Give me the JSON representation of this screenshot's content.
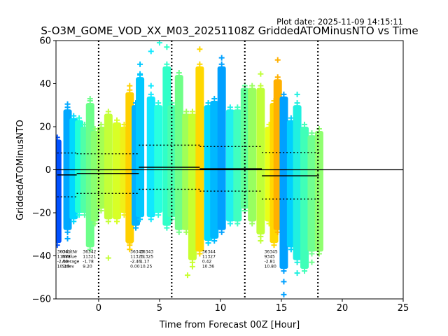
{
  "chart_data": {
    "type": "scatter",
    "title": "S-O3M_GOME_VOD_XX_M03_20251108Z GriddedATOMinusNTO vs Time",
    "plot_date": "Plot date: 2025-11-09 14:15:11",
    "xlabel": "Time from Forecast 00Z [Hour]",
    "ylabel": "GriddedATOMinusNTO",
    "xlim": [
      -3.5,
      25
    ],
    "ylim": [
      -60,
      60
    ],
    "xticks": [
      0,
      5,
      10,
      15,
      20,
      25
    ],
    "yticks": [
      -60,
      -40,
      -20,
      0,
      20,
      40,
      60
    ],
    "vlines_dotted": [
      0,
      6,
      12,
      18
    ],
    "hline_zero": 0,
    "columns": [
      {
        "x": -3.4,
        "min": -36,
        "max": 16,
        "color": "#0050ff"
      },
      {
        "x": -2.55,
        "min": -30,
        "max": 30,
        "color": "#00a8ff"
      },
      {
        "x": -2.05,
        "min": -25,
        "max": 26,
        "color": "#00d8ff"
      },
      {
        "x": -1.6,
        "min": -22,
        "max": 25,
        "color": "#20ffd8"
      },
      {
        "x": -1.15,
        "min": -22,
        "max": 22,
        "color": "#50ffa8"
      },
      {
        "x": -0.7,
        "min": -38,
        "max": 33,
        "color": "#6cff8a"
      },
      {
        "x": -0.3,
        "min": -26,
        "max": 20,
        "color": "#88ff70"
      },
      {
        "x": 0.2,
        "min": -20,
        "max": 22,
        "color": "#a4ff54"
      },
      {
        "x": 0.8,
        "min": -25,
        "max": 28,
        "color": "#c4ff38"
      },
      {
        "x": 1.5,
        "min": -25,
        "max": 24,
        "color": "#d8ff26"
      },
      {
        "x": 2.1,
        "min": -22,
        "max": 22,
        "color": "#f0f018"
      },
      {
        "x": 2.55,
        "min": -36,
        "max": 38,
        "color": "#ffd000"
      },
      {
        "x": 3.05,
        "min": -28,
        "max": 32,
        "color": "#00b0ff"
      },
      {
        "x": 3.4,
        "min": -24,
        "max": 45,
        "color": "#00c8ff"
      },
      {
        "x": 4.3,
        "min": -24,
        "max": 36,
        "color": "#10e8ff"
      },
      {
        "x": 4.9,
        "min": -22,
        "max": 32,
        "color": "#28ffe0"
      },
      {
        "x": 5.6,
        "min": -28,
        "max": 50,
        "color": "#30ffc8"
      },
      {
        "x": 6.0,
        "min": -24,
        "max": 32,
        "color": "#48ffb0"
      },
      {
        "x": 6.6,
        "min": -30,
        "max": 46,
        "color": "#70ff88"
      },
      {
        "x": 7.2,
        "min": -30,
        "max": 28,
        "color": "#a0ff58"
      },
      {
        "x": 7.7,
        "min": -44,
        "max": 28,
        "color": "#c8ff30"
      },
      {
        "x": 8.3,
        "min": -40,
        "max": 50,
        "color": "#ffd800"
      },
      {
        "x": 9.0,
        "min": -35,
        "max": 32,
        "color": "#00d8ff"
      },
      {
        "x": 9.5,
        "min": -34,
        "max": 34,
        "color": "#00b8ff"
      },
      {
        "x": 10.1,
        "min": -30,
        "max": 50,
        "color": "#00a0ff"
      },
      {
        "x": 10.8,
        "min": -26,
        "max": 30,
        "color": "#20f0f0"
      },
      {
        "x": 11.4,
        "min": -26,
        "max": 30,
        "color": "#40ffc0"
      },
      {
        "x": 12.0,
        "min": -20,
        "max": 40,
        "color": "#60ff98"
      },
      {
        "x": 12.6,
        "min": -26,
        "max": 40,
        "color": "#98ff60"
      },
      {
        "x": 13.3,
        "min": -32,
        "max": 40,
        "color": "#c0ff38"
      },
      {
        "x": 14.0,
        "min": -26,
        "max": 22,
        "color": "#e8ff18"
      },
      {
        "x": 14.4,
        "min": -36,
        "max": 33,
        "color": "#ffd800"
      },
      {
        "x": 14.7,
        "min": -30,
        "max": 44,
        "color": "#ffb000"
      },
      {
        "x": 15.2,
        "min": -48,
        "max": 36,
        "color": "#00a0ff"
      },
      {
        "x": 15.8,
        "min": -38,
        "max": 25,
        "color": "#00d0ff"
      },
      {
        "x": 16.3,
        "min": -44,
        "max": 32,
        "color": "#20f0e0"
      },
      {
        "x": 16.9,
        "min": -48,
        "max": 22,
        "color": "#40ffb8"
      },
      {
        "x": 17.5,
        "min": -40,
        "max": 18,
        "color": "#70ff90"
      },
      {
        "x": 18.1,
        "min": -40,
        "max": 20,
        "color": "#90ff70"
      }
    ],
    "outliers": [
      {
        "x": -2.55,
        "y": 30.5,
        "color": "#00a8ff"
      },
      {
        "x": -2.55,
        "y": 25.5,
        "color": "#00a8ff"
      },
      {
        "x": -2.55,
        "y": -32,
        "color": "#00a8ff"
      },
      {
        "x": -0.7,
        "y": 33,
        "color": "#6cff8a"
      },
      {
        "x": 0.8,
        "y": -41,
        "color": "#c4ff38"
      },
      {
        "x": 2.55,
        "y": 39,
        "color": "#ffd000"
      },
      {
        "x": 2.55,
        "y": -34,
        "color": "#ffd000"
      },
      {
        "x": 2.55,
        "y": -37,
        "color": "#ffd000"
      },
      {
        "x": 3.4,
        "y": 49,
        "color": "#00c8ff"
      },
      {
        "x": 3.4,
        "y": 44.5,
        "color": "#00c8ff"
      },
      {
        "x": 4.3,
        "y": 55,
        "color": "#10e8ff"
      },
      {
        "x": 4.3,
        "y": 39,
        "color": "#10e8ff"
      },
      {
        "x": 5.0,
        "y": 59,
        "color": "#28ffe0"
      },
      {
        "x": 5.6,
        "y": 57,
        "color": "#30ffc8"
      },
      {
        "x": 7.3,
        "y": -49,
        "color": "#c8ff30"
      },
      {
        "x": 7.7,
        "y": -45,
        "color": "#c8ff30"
      },
      {
        "x": 8.3,
        "y": 56,
        "color": "#ffd800"
      },
      {
        "x": 10.1,
        "y": 52,
        "color": "#00a0ff"
      },
      {
        "x": 10.1,
        "y": 47,
        "color": "#00a0ff"
      },
      {
        "x": 13.3,
        "y": 44.5,
        "color": "#c0ff38"
      },
      {
        "x": 13.3,
        "y": -33,
        "color": "#c0ff38"
      },
      {
        "x": 14.7,
        "y": 51,
        "color": "#ffb000"
      },
      {
        "x": 15.2,
        "y": -52,
        "color": "#00a0ff"
      },
      {
        "x": 15.2,
        "y": -58,
        "color": "#00a0ff"
      },
      {
        "x": 16.3,
        "y": 35,
        "color": "#20f0e0"
      },
      {
        "x": 16.3,
        "y": -48,
        "color": "#20f0e0"
      },
      {
        "x": 17.5,
        "y": -43,
        "color": "#70ff90"
      }
    ],
    "mean_steps": [
      {
        "x0": -3.4,
        "x1": -1.8,
        "y": -2.4
      },
      {
        "x0": -1.8,
        "x1": 3.3,
        "y": -1.78
      },
      {
        "x0": 3.3,
        "x1": 8.3,
        "y": 1.17
      },
      {
        "x0": 8.3,
        "x1": 13.4,
        "y": 0.42
      },
      {
        "x0": 13.4,
        "x1": 18.1,
        "y": -2.81
      }
    ],
    "std_steps": [
      {
        "x0": -3.4,
        "x1": -1.8,
        "upper": 7.79,
        "lower": -12.59
      },
      {
        "x0": -1.8,
        "x1": 3.3,
        "upper": 7.42,
        "lower": -10.98
      },
      {
        "x0": 3.3,
        "x1": 8.3,
        "upper": 11.42,
        "lower": -9.08
      },
      {
        "x0": 8.3,
        "x1": 13.4,
        "upper": 10.78,
        "lower": -9.94
      },
      {
        "x0": 13.4,
        "x1": 18.1,
        "upper": 7.99,
        "lower": -13.61
      }
    ],
    "stats_header": [
      "OrbitNr",
      "NValue",
      "Average",
      "Stdev"
    ],
    "stats": [
      {
        "x": -3.4,
        "lines": [
          "36341",
          "11088",
          "-2.40",
          "10.19"
        ]
      },
      {
        "x": -1.3,
        "lines": [
          "36342",
          "11321",
          "-1.78",
          "9.20"
        ]
      },
      {
        "x": 2.6,
        "lines": [
          "36343",
          "11325",
          "-2.46",
          "0.00"
        ]
      },
      {
        "x": 3.4,
        "lines": [
          "36343",
          "11325",
          "1.17",
          "10.25"
        ]
      },
      {
        "x": 8.5,
        "lines": [
          "36344",
          "11327",
          "0.42",
          "10.36"
        ]
      },
      {
        "x": 13.6,
        "lines": [
          "36345",
          "9345",
          "-2.81",
          "10.80"
        ]
      }
    ]
  }
}
